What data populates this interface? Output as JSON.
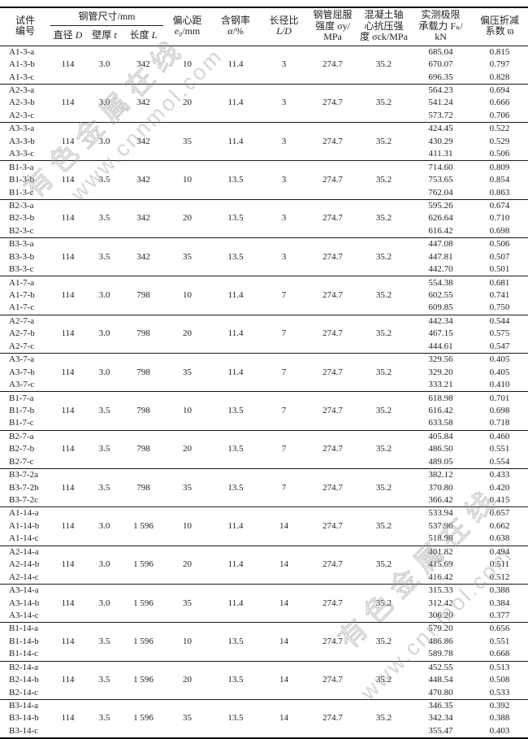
{
  "watermark": {
    "site_zh": "有色金属在线",
    "site_url": "www.cnnmol.com"
  },
  "table": {
    "header": {
      "specimen": [
        "试件",
        "编号"
      ],
      "steel_tube_group": "钢管尺寸/mm",
      "sub_columns": {
        "d_label": "直径 ",
        "d_var": "D",
        "t_label": "壁厚 ",
        "t_var": "t",
        "l_label": "长度 ",
        "l_var": "L"
      },
      "eccentricity": {
        "line1": "偏心距",
        "var": "e₀",
        "unit": "/mm"
      },
      "steel_ratio": {
        "line1": "含钢率",
        "var": "α",
        "unit": "/%"
      },
      "slenderness": {
        "line1": "长径比",
        "var": "L/D",
        "unit": ""
      },
      "yield_strength": [
        "钢管屈服",
        "强度 σy/",
        "MPa"
      ],
      "concrete_strength": [
        "混凝土轴",
        "心抗压强",
        "度 σck/MPa"
      ],
      "ultimate_load": [
        "实测极限",
        "承载力 Fₙ/",
        "kN"
      ],
      "reduction": [
        "偏压折减",
        "系数 ϖ"
      ]
    },
    "groups": [
      {
        "shared": {
          "d": "114",
          "t": "3.0",
          "l": "342",
          "e0": "10",
          "alpha": "11.4",
          "ld": "3",
          "sigma_y": "274.7",
          "sigma_ck": "35.2"
        },
        "rows": [
          {
            "id": "A1-3-a",
            "fn": "685.04",
            "phi": "0.815"
          },
          {
            "id": "A1-3-b",
            "fn": "670.07",
            "phi": "0.797"
          },
          {
            "id": "A1-3-c",
            "fn": "696.35",
            "phi": "0.828"
          }
        ]
      },
      {
        "shared": {
          "d": "114",
          "t": "3.0",
          "l": "342",
          "e0": "20",
          "alpha": "11.4",
          "ld": "3",
          "sigma_y": "274.7",
          "sigma_ck": "35.2"
        },
        "rows": [
          {
            "id": "A2-3-a",
            "fn": "564.23",
            "phi": "0.694"
          },
          {
            "id": "A2-3-b",
            "fn": "541.24",
            "phi": "0.666"
          },
          {
            "id": "A2-3-c",
            "fn": "573.72",
            "phi": "0.706"
          }
        ]
      },
      {
        "shared": {
          "d": "114",
          "t": "3.0",
          "l": "342",
          "e0": "35",
          "alpha": "11.4",
          "ld": "3",
          "sigma_y": "274.7",
          "sigma_ck": "35.2"
        },
        "rows": [
          {
            "id": "A3-3-a",
            "fn": "424.45",
            "phi": "0.522"
          },
          {
            "id": "A3-3-b",
            "fn": "430.29",
            "phi": "0.529"
          },
          {
            "id": "A3-3-c",
            "fn": "411.31",
            "phi": "0.506"
          }
        ]
      },
      {
        "shared": {
          "d": "114",
          "t": "3.5",
          "l": "342",
          "e0": "10",
          "alpha": "13.5",
          "ld": "3",
          "sigma_y": "274.7",
          "sigma_ck": "35.2"
        },
        "rows": [
          {
            "id": "B1-3-a",
            "fn": "714.60",
            "phi": "0.809"
          },
          {
            "id": "B1-3-b",
            "fn": "753.65",
            "phi": "0.854"
          },
          {
            "id": "B1-3-c",
            "fn": "762.04",
            "phi": "0.863"
          }
        ]
      },
      {
        "shared": {
          "d": "114",
          "t": "3.5",
          "l": "342",
          "e0": "20",
          "alpha": "13.5",
          "ld": "3",
          "sigma_y": "274.7",
          "sigma_ck": "35.2"
        },
        "rows": [
          {
            "id": "B2-3-a",
            "fn": "595.26",
            "phi": "0.674"
          },
          {
            "id": "B2-3-b",
            "fn": "626.64",
            "phi": "0.710"
          },
          {
            "id": "B2-3-c",
            "fn": "616.42",
            "phi": "0.698"
          }
        ]
      },
      {
        "shared": {
          "d": "114",
          "t": "3.5",
          "l": "342",
          "e0": "35",
          "alpha": "13.5",
          "ld": "3",
          "sigma_y": "274.7",
          "sigma_ck": "35.2"
        },
        "rows": [
          {
            "id": "B3-3-a",
            "fn": "447.08",
            "phi": "0.506"
          },
          {
            "id": "B3-3-b",
            "fn": "447.81",
            "phi": "0.507"
          },
          {
            "id": "B3-3-c",
            "fn": "442.70",
            "phi": "0.501"
          }
        ]
      },
      {
        "shared": {
          "d": "114",
          "t": "3.0",
          "l": "798",
          "e0": "10",
          "alpha": "11.4",
          "ld": "7",
          "sigma_y": "274.7",
          "sigma_ck": "35.2"
        },
        "rows": [
          {
            "id": "A1-7-a",
            "fn": "554.38",
            "phi": "0.681"
          },
          {
            "id": "A1-7-b",
            "fn": "602.55",
            "phi": "0.741"
          },
          {
            "id": "A1-7-c",
            "fn": "609.85",
            "phi": "0.750"
          }
        ]
      },
      {
        "shared": {
          "d": "114",
          "t": "3.0",
          "l": "798",
          "e0": "20",
          "alpha": "11.4",
          "ld": "7",
          "sigma_y": "274.7",
          "sigma_ck": "35.2"
        },
        "rows": [
          {
            "id": "A2-7-a",
            "fn": "442.34",
            "phi": "0.544"
          },
          {
            "id": "A2-7-b",
            "fn": "467.15",
            "phi": "0.575"
          },
          {
            "id": "A2-7-c",
            "fn": "444.61",
            "phi": "0.547"
          }
        ]
      },
      {
        "shared": {
          "d": "114",
          "t": "3.0",
          "l": "798",
          "e0": "35",
          "alpha": "11.4",
          "ld": "7",
          "sigma_y": "274.7",
          "sigma_ck": "35.2"
        },
        "rows": [
          {
            "id": "A3-7-a",
            "fn": "329.56",
            "phi": "0.405"
          },
          {
            "id": "A3-7-b",
            "fn": "329.20",
            "phi": "0.405"
          },
          {
            "id": "A3-7-c",
            "fn": "333.21",
            "phi": "0.410"
          }
        ]
      },
      {
        "shared": {
          "d": "114",
          "t": "3.5",
          "l": "798",
          "e0": "10",
          "alpha": "13.5",
          "ld": "7",
          "sigma_y": "274.7",
          "sigma_ck": "35.2"
        },
        "rows": [
          {
            "id": "B1-7-a",
            "fn": "618.98",
            "phi": "0.701"
          },
          {
            "id": "B1-7-b",
            "fn": "616.42",
            "phi": "0.698"
          },
          {
            "id": "B1-7-c",
            "fn": "633.58",
            "phi": "0.718"
          }
        ]
      },
      {
        "shared": {
          "d": "114",
          "t": "3.5",
          "l": "798",
          "e0": "20",
          "alpha": "13.5",
          "ld": "7",
          "sigma_y": "274.7",
          "sigma_ck": "35.2"
        },
        "rows": [
          {
            "id": "B2-7-a",
            "fn": "405.84",
            "phi": "0.460"
          },
          {
            "id": "B2-7-b",
            "fn": "486.50",
            "phi": "0.551"
          },
          {
            "id": "B2-7-c",
            "fn": "489.05",
            "phi": "0.554"
          }
        ]
      },
      {
        "shared": {
          "d": "114",
          "t": "3.5",
          "l": "798",
          "e0": "35",
          "alpha": "13.5",
          "ld": "7",
          "sigma_y": "274.7",
          "sigma_ck": "35.2"
        },
        "rows": [
          {
            "id": "B3-7-2a",
            "fn": "382.12",
            "phi": "0.433"
          },
          {
            "id": "B3-7-2b",
            "fn": "370.80",
            "phi": "0.420"
          },
          {
            "id": "B3-7-2c",
            "fn": "366.42",
            "phi": "0.415"
          }
        ]
      },
      {
        "shared": {
          "d": "114",
          "t": "3.0",
          "l": "1 596",
          "e0": "10",
          "alpha": "11.4",
          "ld": "14",
          "sigma_y": "274.7",
          "sigma_ck": "35.2"
        },
        "rows": [
          {
            "id": "A1-14-a",
            "fn": "533.94",
            "phi": "0.657"
          },
          {
            "id": "A1-14-b",
            "fn": "537.96",
            "phi": "0.662"
          },
          {
            "id": "A1-14-c",
            "fn": "518.98",
            "phi": "0.638"
          }
        ]
      },
      {
        "shared": {
          "d": "114",
          "t": "3.0",
          "l": "1 596",
          "e0": "20",
          "alpha": "11.4",
          "ld": "14",
          "sigma_y": "274.7",
          "sigma_ck": "35.2"
        },
        "rows": [
          {
            "id": "A2-14-a",
            "fn": "401.82",
            "phi": "0.494"
          },
          {
            "id": "A2-14-b",
            "fn": "415.69",
            "phi": "0.511"
          },
          {
            "id": "A2-14-c",
            "fn": "416.42",
            "phi": "0.512"
          }
        ]
      },
      {
        "shared": {
          "d": "114",
          "t": "3.0",
          "l": "1 596",
          "e0": "35",
          "alpha": "11.4",
          "ld": "14",
          "sigma_y": "274.7",
          "sigma_ck": "35.2"
        },
        "rows": [
          {
            "id": "A3-14-a",
            "fn": "315.33",
            "phi": "0.388"
          },
          {
            "id": "A3-14-b",
            "fn": "312.42",
            "phi": "0.384"
          },
          {
            "id": "A3-14-c",
            "fn": "306.20",
            "phi": "0.377"
          }
        ]
      },
      {
        "shared": {
          "d": "114",
          "t": "3.5",
          "l": "1 596",
          "e0": "10",
          "alpha": "13.5",
          "ld": "14",
          "sigma_y": "274.7",
          "sigma_ck": "35.2"
        },
        "rows": [
          {
            "id": "B1-14-a",
            "fn": "579.20",
            "phi": "0.656"
          },
          {
            "id": "B1-14-b",
            "fn": "486.86",
            "phi": "0.551"
          },
          {
            "id": "B1-14-c",
            "fn": "589.78",
            "phi": "0.668"
          }
        ]
      },
      {
        "shared": {
          "d": "114",
          "t": "3.5",
          "l": "1 596",
          "e0": "20",
          "alpha": "13.5",
          "ld": "14",
          "sigma_y": "274.7",
          "sigma_ck": "35.2"
        },
        "rows": [
          {
            "id": "B2-14-a",
            "fn": "452.55",
            "phi": "0.513"
          },
          {
            "id": "B2-14-b",
            "fn": "448.54",
            "phi": "0.508"
          },
          {
            "id": "B2-14-c",
            "fn": "470.80",
            "phi": "0.533"
          }
        ]
      },
      {
        "shared": {
          "d": "114",
          "t": "3.5",
          "l": "1 596",
          "e0": "35",
          "alpha": "13.5",
          "ld": "14",
          "sigma_y": "274.7",
          "sigma_ck": "35.2"
        },
        "rows": [
          {
            "id": "B3-14-a",
            "fn": "346.35",
            "phi": "0.392"
          },
          {
            "id": "B3-14-b",
            "fn": "342.34",
            "phi": "0.388"
          },
          {
            "id": "B3-14-c",
            "fn": "355.47",
            "phi": "0.403"
          }
        ]
      }
    ]
  }
}
